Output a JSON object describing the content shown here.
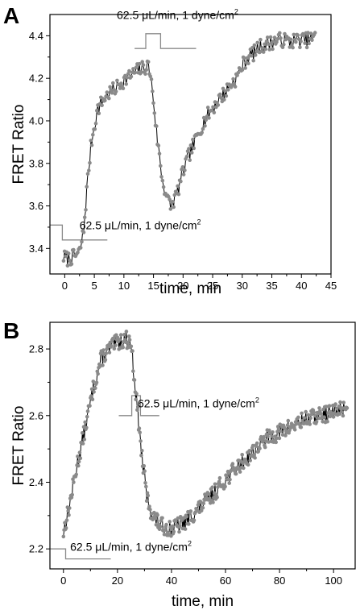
{
  "chart_data": [
    {
      "type": "line",
      "panel": "A",
      "xlabel": "time, min",
      "ylabel": "FRET Ratio",
      "xlim": [
        -2.5,
        45
      ],
      "ylim": [
        3.28,
        4.5
      ],
      "xticks": [
        0,
        5,
        10,
        15,
        20,
        25,
        30,
        35,
        40,
        45
      ],
      "yticks": [
        3.4,
        3.6,
        3.8,
        4.0,
        4.2,
        4.4
      ],
      "ytick_labels": [
        "3.4",
        "3.6",
        "3.8",
        "4.0",
        "4.2",
        "4.4"
      ],
      "colors": {
        "line": "#000000",
        "marker": "#8a8a8a",
        "step": "#8a8a8a"
      },
      "keypoints": [
        [
          -0.2,
          3.36
        ],
        [
          0.5,
          3.35
        ],
        [
          1.5,
          3.36
        ],
        [
          2.5,
          3.38
        ],
        [
          3.2,
          3.48
        ],
        [
          3.8,
          3.7
        ],
        [
          4.5,
          3.9
        ],
        [
          5.5,
          4.05
        ],
        [
          6.5,
          4.1
        ],
        [
          7.5,
          4.13
        ],
        [
          8.5,
          4.15
        ],
        [
          9.5,
          4.18
        ],
        [
          10.5,
          4.2
        ],
        [
          11.5,
          4.22
        ],
        [
          12.5,
          4.24
        ],
        [
          13.5,
          4.25
        ],
        [
          14.2,
          4.26
        ],
        [
          14.8,
          4.15
        ],
        [
          15.5,
          3.95
        ],
        [
          16.5,
          3.72
        ],
        [
          17.5,
          3.62
        ],
        [
          18,
          3.6
        ],
        [
          19,
          3.66
        ],
        [
          20,
          3.76
        ],
        [
          21,
          3.84
        ],
        [
          22,
          3.9
        ],
        [
          23,
          3.97
        ],
        [
          24,
          4.02
        ],
        [
          25,
          4.06
        ],
        [
          26,
          4.1
        ],
        [
          27,
          4.13
        ],
        [
          28,
          4.17
        ],
        [
          29,
          4.2
        ],
        [
          30,
          4.26
        ],
        [
          31,
          4.3
        ],
        [
          32,
          4.32
        ],
        [
          33,
          4.35
        ],
        [
          34,
          4.36
        ],
        [
          35,
          4.37
        ],
        [
          36,
          4.38
        ],
        [
          37,
          4.38
        ],
        [
          38,
          4.37
        ],
        [
          39,
          4.38
        ],
        [
          40,
          4.38
        ],
        [
          41,
          4.38
        ],
        [
          42.3,
          4.39
        ]
      ],
      "noise": 0.035,
      "step_traces": [
        {
          "points": [
            [
              -2.5,
              3.51
            ],
            [
              -0.4,
              3.51
            ],
            [
              -0.4,
              3.44
            ],
            [
              7.2,
              3.44
            ]
          ]
        },
        {
          "points": [
            [
              11.8,
              4.34
            ],
            [
              13.7,
              4.34
            ],
            [
              13.7,
              4.41
            ],
            [
              16.2,
              4.41
            ],
            [
              16.2,
              4.34
            ],
            [
              22.2,
              4.34
            ]
          ]
        }
      ],
      "annotations": [
        {
          "text": "62.5 μL/min, 1 dyne/cm",
          "sup": "2",
          "at": [
            2.5,
            3.49
          ]
        },
        {
          "text": "62.5 μL/min, 1 dyne/cm",
          "sup": "2",
          "at": [
            8.8,
            4.48
          ]
        }
      ]
    },
    {
      "type": "line",
      "panel": "B",
      "xlabel": "time, min",
      "ylabel": "FRET Ratio",
      "xlim": [
        -5,
        108
      ],
      "ylim": [
        2.14,
        2.88
      ],
      "xticks": [
        0,
        20,
        40,
        60,
        80,
        100
      ],
      "yticks": [
        2.2,
        2.4,
        2.6,
        2.8
      ],
      "ytick_labels": [
        "2.2",
        "2.4",
        "2.6",
        "2.8"
      ],
      "colors": {
        "line": "#000000",
        "marker": "#8a8a8a",
        "step": "#8a8a8a"
      },
      "keypoints": [
        [
          0,
          2.25
        ],
        [
          2,
          2.32
        ],
        [
          5,
          2.45
        ],
        [
          8,
          2.56
        ],
        [
          11,
          2.68
        ],
        [
          14,
          2.77
        ],
        [
          17,
          2.8
        ],
        [
          20,
          2.82
        ],
        [
          23,
          2.83
        ],
        [
          25,
          2.82
        ],
        [
          27,
          2.65
        ],
        [
          29,
          2.48
        ],
        [
          31,
          2.35
        ],
        [
          33,
          2.3
        ],
        [
          36,
          2.27
        ],
        [
          40,
          2.26
        ],
        [
          45,
          2.28
        ],
        [
          50,
          2.32
        ],
        [
          55,
          2.36
        ],
        [
          60,
          2.41
        ],
        [
          65,
          2.45
        ],
        [
          70,
          2.49
        ],
        [
          75,
          2.53
        ],
        [
          80,
          2.55
        ],
        [
          85,
          2.57
        ],
        [
          90,
          2.59
        ],
        [
          95,
          2.6
        ],
        [
          100,
          2.61
        ],
        [
          105,
          2.63
        ]
      ],
      "noise": 0.025,
      "step_traces": [
        {
          "points": [
            [
              -5,
              2.2
            ],
            [
              0.8,
              2.2
            ],
            [
              0.8,
              2.17
            ],
            [
              17.5,
              2.17
            ]
          ]
        },
        {
          "points": [
            [
              20.5,
              2.6
            ],
            [
              25.3,
              2.6
            ],
            [
              25.3,
              2.66
            ],
            [
              28.5,
              2.66
            ],
            [
              28.5,
              2.6
            ],
            [
              35.5,
              2.6
            ]
          ]
        }
      ],
      "annotations": [
        {
          "text": "62.5 μL/min, 1 dyne/cm",
          "sup": "2",
          "at": [
            2.5,
            2.195
          ]
        },
        {
          "text": "62.5 μL/min, 1 dyne/cm",
          "sup": "2",
          "at": [
            27.5,
            2.625
          ]
        }
      ]
    }
  ]
}
